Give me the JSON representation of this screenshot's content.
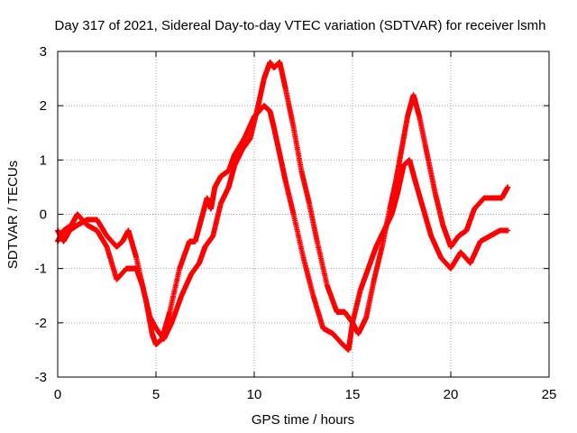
{
  "chart_data": {
    "type": "scatter",
    "title": "Day 317 of 2021, Sidereal Day-to-day VTEC variation (SDTVAR) for receiver lsmh",
    "xlabel": "GPS time / hours",
    "ylabel": "SDTVAR / TECUs",
    "xlim": [
      0,
      25
    ],
    "ylim": [
      -3,
      3
    ],
    "xticks": [
      0,
      5,
      10,
      15,
      20,
      25
    ],
    "yticks": [
      -3,
      -2,
      -1,
      0,
      1,
      2,
      3
    ],
    "grid": true,
    "marker": "+",
    "color": "#ff0000",
    "series": [
      {
        "x": [
          0.0,
          0.3,
          0.6,
          1.0,
          1.5,
          2.0,
          2.5,
          3.0,
          3.3,
          3.6,
          4.0,
          4.5,
          4.8,
          5.0,
          5.3,
          5.7,
          6.2,
          6.7,
          7.0,
          7.3,
          7.6,
          7.8,
          8.0,
          8.3,
          8.7,
          9.0,
          9.5,
          10.0,
          10.5,
          10.8,
          11.0,
          11.3,
          11.6,
          12.0,
          12.5,
          13.0,
          13.5,
          14.0,
          14.5,
          14.8,
          15.0,
          15.4,
          15.8,
          16.2,
          16.6,
          17.0,
          17.3,
          17.6,
          17.9,
          18.2,
          18.6,
          19.0,
          19.5,
          20.0,
          20.5,
          21.0,
          21.5,
          22.0,
          22.5,
          22.9
        ],
        "y": [
          -0.3,
          -0.5,
          -0.3,
          -0.2,
          -0.1,
          -0.1,
          -0.4,
          -0.6,
          -0.5,
          -0.3,
          -0.8,
          -1.6,
          -2.2,
          -2.4,
          -2.3,
          -1.8,
          -1.0,
          -0.5,
          -0.5,
          -0.1,
          0.3,
          0.1,
          0.5,
          0.7,
          0.8,
          1.1,
          1.4,
          1.8,
          2.0,
          1.9,
          1.6,
          1.1,
          0.6,
          0.0,
          -0.8,
          -1.5,
          -2.1,
          -2.2,
          -2.4,
          -2.5,
          -2.0,
          -1.4,
          -1.0,
          -0.6,
          -0.3,
          0.0,
          0.4,
          0.9,
          1.0,
          0.6,
          0.1,
          -0.4,
          -0.8,
          -1.0,
          -0.7,
          -0.9,
          -0.5,
          -0.4,
          -0.3,
          -0.3
        ]
      },
      {
        "x": [
          0.0,
          0.3,
          0.7,
          1.0,
          1.5,
          2.0,
          2.5,
          3.0,
          3.5,
          4.0,
          4.3,
          4.7,
          5.0,
          5.4,
          5.8,
          6.3,
          6.8,
          7.2,
          7.5,
          7.9,
          8.3,
          8.7,
          9.0,
          9.4,
          9.8,
          10.2,
          10.5,
          10.8,
          11.0,
          11.3,
          11.6,
          12.0,
          12.4,
          12.8,
          13.2,
          13.7,
          14.2,
          14.6,
          15.0,
          15.3,
          15.7,
          16.1,
          16.5,
          16.9,
          17.2,
          17.5,
          17.8,
          18.1,
          18.4,
          18.8,
          19.2,
          19.6,
          20.0,
          20.4,
          20.8,
          21.2,
          21.7,
          22.2,
          22.6,
          22.9
        ],
        "y": [
          -0.5,
          -0.3,
          -0.2,
          0.0,
          -0.2,
          -0.3,
          -0.6,
          -1.2,
          -1.0,
          -1.0,
          -1.3,
          -1.9,
          -2.1,
          -2.3,
          -2.0,
          -1.5,
          -1.1,
          -0.9,
          -0.6,
          -0.4,
          0.2,
          0.5,
          0.9,
          1.2,
          1.4,
          2.0,
          2.5,
          2.8,
          2.7,
          2.8,
          2.3,
          1.6,
          0.8,
          0.2,
          -0.5,
          -1.3,
          -1.8,
          -1.8,
          -2.0,
          -2.2,
          -1.9,
          -1.2,
          -0.6,
          0.1,
          0.6,
          1.2,
          1.8,
          2.2,
          1.8,
          1.1,
          0.4,
          -0.2,
          -0.6,
          -0.4,
          -0.3,
          0.1,
          0.3,
          0.3,
          0.3,
          0.5
        ]
      }
    ]
  }
}
